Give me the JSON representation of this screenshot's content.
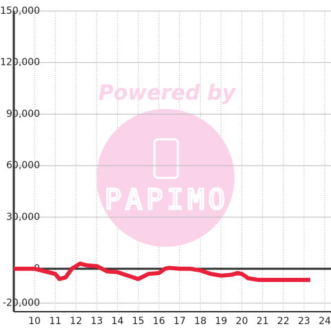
{
  "watermark": {
    "line1": "Powered by",
    "line2": "PAPIMO"
  },
  "chart_data": {
    "type": "line",
    "x": [
      9,
      10,
      10.5,
      11,
      11.2,
      11.5,
      11.8,
      12.2,
      12.5,
      13,
      13.5,
      14,
      14.5,
      15,
      15.5,
      16,
      16.3,
      16.5,
      17,
      17.5,
      18,
      18.5,
      19,
      19.5,
      19.8,
      20,
      20.3,
      20.8,
      21,
      22,
      23.3
    ],
    "series": [
      {
        "color": "#e8203a",
        "values": [
          0,
          0,
          -1500,
          -3000,
          -6000,
          -5000,
          0,
          3000,
          2000,
          1500,
          -1500,
          -2000,
          -4000,
          -6000,
          -3000,
          -2500,
          0,
          500,
          0,
          0,
          -1000,
          -3000,
          -4000,
          -3500,
          -2500,
          -3000,
          -5500,
          -6500,
          -6500,
          -6500,
          -6500
        ]
      }
    ],
    "xlim": [
      9,
      24.3
    ],
    "ylim": [
      -25000,
      150000
    ],
    "xticks": [
      10,
      11,
      12,
      13,
      14,
      15,
      16,
      17,
      18,
      19,
      20,
      21,
      22,
      23,
      24
    ],
    "yticks": [
      {
        "value": -20000,
        "label": "-20,000"
      },
      0,
      {
        "value": 30000,
        "label": "30,000"
      },
      {
        "value": 60000,
        "label": "60,000"
      },
      {
        "value": 90000,
        "label": "90,000"
      },
      {
        "value": 120000,
        "label": "120,000"
      },
      {
        "value": 150000,
        "label": "150,000"
      }
    ],
    "grid": true
  }
}
